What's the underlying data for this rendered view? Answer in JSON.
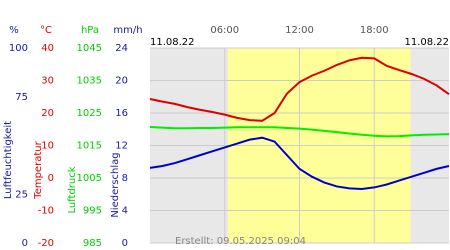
{
  "chart_data": {
    "type": "line",
    "date_left": "11.08.22",
    "date_right": "11.08.22",
    "footer": "Erstellt: 09.05.2025 09:04",
    "xlim": [
      0,
      24
    ],
    "xticks": [
      {
        "value": 6,
        "label": "06:00"
      },
      {
        "value": 12,
        "label": "12:00"
      },
      {
        "value": 18,
        "label": "18:00"
      }
    ],
    "daylight": [
      6.25,
      20.9
    ],
    "grid": true,
    "axes": [
      {
        "unit": "%",
        "title": "Luftfeuchtigkeit",
        "color": "#1a1aa0",
        "ylim": [
          0,
          100
        ],
        "yticks": [
          100,
          75,
          25,
          0
        ]
      },
      {
        "unit": "°C",
        "title": "Temperatur",
        "color": "#dd0000",
        "ylim": [
          -20,
          40
        ],
        "yticks": [
          40,
          30,
          20,
          10,
          0,
          -10,
          -20
        ]
      },
      {
        "unit": "hPa",
        "title": "Luftdruck",
        "color": "#00cc00",
        "ylim": [
          985,
          1045
        ],
        "yticks": [
          1045,
          1035,
          1025,
          1015,
          1005,
          995,
          985
        ]
      },
      {
        "unit": "mm/h",
        "title": "Niederschlag",
        "color": "#1a1aa0",
        "ylim": [
          0,
          24
        ],
        "yticks": [
          24,
          20,
          16,
          12,
          8,
          4,
          0
        ]
      }
    ],
    "x": [
      0,
      1,
      2,
      3,
      4,
      5,
      6,
      7,
      8,
      9,
      10,
      11,
      12,
      13,
      14,
      15,
      16,
      17,
      18,
      19,
      20,
      21,
      22,
      23,
      24
    ],
    "series": [
      {
        "name": "Temperatur",
        "axis": 1,
        "color": "#dd0000",
        "values": [
          24.3,
          23.5,
          22.8,
          21.8,
          21,
          20.3,
          19.5,
          18.5,
          17.8,
          17.6,
          20,
          26,
          29.5,
          31.5,
          33,
          34.8,
          36.2,
          37,
          36.8,
          34.5,
          33.2,
          32,
          30.5,
          28.5,
          25.8
        ]
      },
      {
        "name": "Luftdruck",
        "axis": 2,
        "color": "#00ee00",
        "values": [
          1020.7,
          1020.5,
          1020.3,
          1020.3,
          1020.4,
          1020.4,
          1020.5,
          1020.6,
          1020.6,
          1020.6,
          1020.6,
          1020.4,
          1020.2,
          1019.9,
          1019.5,
          1019.1,
          1018.7,
          1018.3,
          1018,
          1017.8,
          1017.9,
          1018.1,
          1018.3,
          1018.4,
          1018.5
        ]
      },
      {
        "name": "Luftfeuchtigkeit",
        "axis": 0,
        "color": "#0000cc",
        "values": [
          38.5,
          39.5,
          41,
          43,
          45,
          47,
          49,
          51,
          53,
          54,
          52,
          45,
          38,
          34,
          31,
          29,
          28,
          27.7,
          28.5,
          30,
          32,
          34,
          36,
          38,
          39.5
        ]
      }
    ]
  }
}
